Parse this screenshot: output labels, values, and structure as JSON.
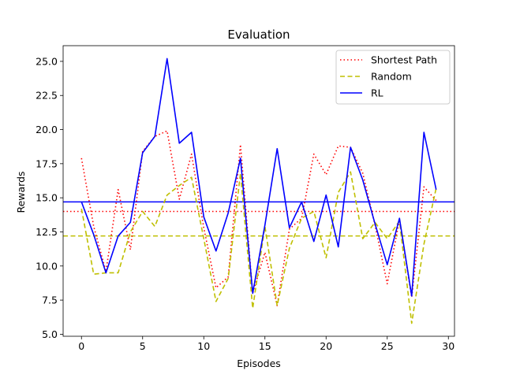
{
  "chart_data": {
    "type": "line",
    "title": "Evaluation",
    "xlabel": "Episodes",
    "ylabel": "Rewards",
    "xlim": [
      -1.5,
      30.5
    ],
    "ylim": [
      4.85,
      26.15
    ],
    "xticks": [
      0,
      5,
      10,
      15,
      20,
      25,
      30
    ],
    "yticks": [
      5.0,
      7.5,
      10.0,
      12.5,
      15.0,
      17.5,
      20.0,
      22.5,
      25.0
    ],
    "ytick_labels": [
      "5.0",
      "7.5",
      "10.0",
      "12.5",
      "15.0",
      "17.5",
      "20.0",
      "22.5",
      "25.0"
    ],
    "legend_position": "top-right",
    "grid": false,
    "x": [
      0,
      1,
      2,
      3,
      4,
      5,
      6,
      7,
      8,
      9,
      10,
      11,
      12,
      13,
      14,
      15,
      16,
      17,
      18,
      19,
      20,
      21,
      22,
      23,
      24,
      25,
      26,
      27,
      28,
      29
    ],
    "series": [
      {
        "name": "Shortest Path",
        "color": "#ff0000",
        "style": "dotted",
        "mean": 14.0,
        "values": [
          17.9,
          12.9,
          9.6,
          15.6,
          11.2,
          18.4,
          19.5,
          19.9,
          14.9,
          18.2,
          12.8,
          8.4,
          9.2,
          18.9,
          8.0,
          11.0,
          7.1,
          12.7,
          13.5,
          18.2,
          16.7,
          18.8,
          18.7,
          16.8,
          13.0,
          8.7,
          13.4,
          7.7,
          15.8,
          14.8
        ]
      },
      {
        "name": "Random",
        "color": "#bfbf00",
        "style": "dashed",
        "mean": 12.2,
        "values": [
          14.2,
          9.4,
          9.5,
          9.5,
          12.5,
          14.0,
          12.9,
          15.2,
          15.9,
          16.5,
          12.0,
          7.4,
          9.1,
          16.8,
          6.9,
          12.9,
          7.1,
          11.3,
          13.5,
          14.0,
          10.6,
          15.4,
          16.9,
          12.0,
          13.2,
          12.0,
          13.3,
          5.8,
          11.6,
          15.7
        ]
      },
      {
        "name": "RL",
        "color": "#0000ff",
        "style": "solid",
        "mean": 14.7,
        "values": [
          14.7,
          12.3,
          9.5,
          12.2,
          13.2,
          18.3,
          19.5,
          25.2,
          19.0,
          19.8,
          13.6,
          11.1,
          13.9,
          17.9,
          8.0,
          13.0,
          18.6,
          12.8,
          14.7,
          11.8,
          15.2,
          11.4,
          18.7,
          16.3,
          13.1,
          10.1,
          13.5,
          7.8,
          19.8,
          15.6
        ]
      }
    ]
  }
}
